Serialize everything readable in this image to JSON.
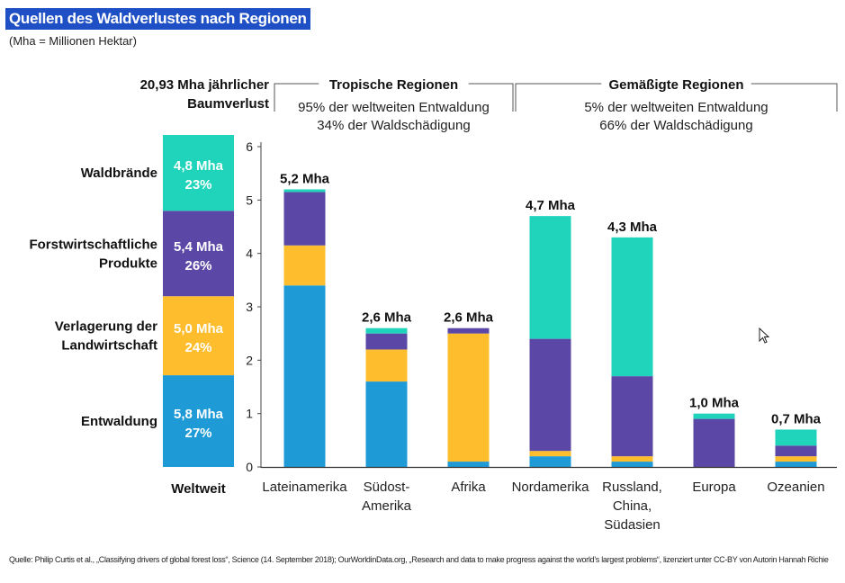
{
  "title": "Quellen des Waldverlustes nach Regionen",
  "subtitle": "(Mha = Millionen Hektar)",
  "source": "Quelle: Philip Curtis et al., „Classifying drivers of global forest loss“, Science (14. September 2018); OurWorldinData.org, „Research and data to make progress against the world’s largest problems“, lizenziert unter CC-BY von Autorin Hannah Richie",
  "cursor_icon": "arrow-cursor-icon",
  "colors": {
    "Entwaldung": "#1e9bd7",
    "Verlagerung der Landwirtschaft": "#fdbd2c",
    "Forstwirtschaftliche Produkte": "#5b48a6",
    "Waldbrände": "#1fd4bb"
  },
  "chart_data": {
    "type": "bar",
    "stacked": true,
    "title": "Quellen des Waldverlustes nach Regionen",
    "ylim": [
      0,
      6
    ],
    "yticks": [
      0,
      1,
      2,
      3,
      4,
      5,
      6
    ],
    "categories": [
      [
        "Lateinamerika"
      ],
      [
        "Südost-",
        "Amerika"
      ],
      [
        "Afrika"
      ],
      [
        "Nordamerika"
      ],
      [
        "Russland,",
        "China,",
        "Südasien"
      ],
      [
        "Europa"
      ],
      [
        "Ozeanien"
      ]
    ],
    "totals_labels": [
      "5,2 Mha",
      "2,6 Mha",
      "2,6 Mha",
      "4,7 Mha",
      "4,3 Mha",
      "1,0 Mha",
      "0,7 Mha"
    ],
    "series": [
      {
        "name": "Entwaldung",
        "values": [
          3.4,
          1.6,
          0.1,
          0.2,
          0.1,
          0.0,
          0.1
        ]
      },
      {
        "name": "Verlagerung der Landwirtschaft",
        "values": [
          0.75,
          0.6,
          2.4,
          0.1,
          0.1,
          0.0,
          0.1
        ]
      },
      {
        "name": "Forstwirtschaftliche Produkte",
        "values": [
          1.0,
          0.3,
          0.1,
          2.1,
          1.5,
          0.9,
          0.2
        ]
      },
      {
        "name": "Waldbrände",
        "values": [
          0.05,
          0.1,
          0.0,
          2.3,
          2.6,
          0.1,
          0.3
        ]
      }
    ],
    "region_groups": [
      {
        "title": "Tropische Regionen",
        "lines": [
          "95% der weltweiten Entwaldung",
          "34% der Waldschädigung"
        ]
      },
      {
        "title": "Gemäßigte Regionen",
        "lines": [
          "5% der weltweiten Entwaldung",
          "66% der Waldschädigung"
        ]
      }
    ],
    "global": {
      "title_lines": [
        "20,93 Mha jährlicher",
        "Baumverlust"
      ],
      "label": "Weltweit",
      "segments": [
        {
          "name": "Entwaldung",
          "label_lines": [
            "Entwaldung"
          ],
          "value_label": "5,8 Mha",
          "percent_label": "27%",
          "value": 5.8
        },
        {
          "name": "Verlagerung der Landwirtschaft",
          "label_lines": [
            "Verlagerung der",
            "Landwirtschaft"
          ],
          "value_label": "5,0 Mha",
          "percent_label": "24%",
          "value": 5.0
        },
        {
          "name": "Forstwirtschaftliche Produkte",
          "label_lines": [
            "Forstwirtschaftliche",
            "Produkte"
          ],
          "value_label": "5,4 Mha",
          "percent_label": "26%",
          "value": 5.4
        },
        {
          "name": "Waldbrände",
          "label_lines": [
            "Waldbrände"
          ],
          "value_label": "4,8 Mha",
          "percent_label": "23%",
          "value": 4.8
        }
      ]
    }
  }
}
